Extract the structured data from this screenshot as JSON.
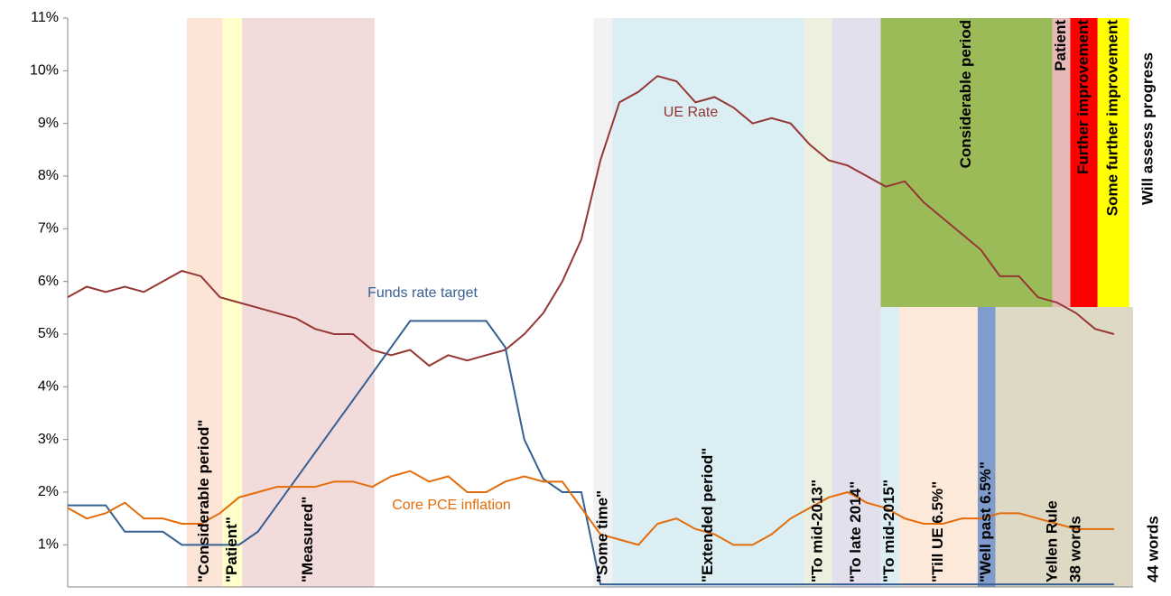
{
  "chart_data": {
    "type": "line",
    "x": [
      0,
      3,
      6,
      9,
      12,
      15,
      18,
      21,
      24,
      27,
      30,
      33,
      36,
      39,
      42,
      45,
      48,
      51,
      54,
      57,
      60,
      63,
      66,
      69,
      72,
      75,
      78,
      81,
      84,
      87,
      90,
      93,
      96,
      99,
      102,
      105,
      108,
      111,
      114,
      117,
      120,
      123,
      126,
      129,
      132,
      135,
      138,
      141,
      144,
      147,
      150,
      153,
      156,
      159,
      162,
      165
    ],
    "xlim": [
      0,
      168
    ],
    "ylim": [
      0.2,
      11
    ],
    "yticks": [
      {
        "value": 1,
        "label": "1%"
      },
      {
        "value": 2,
        "label": "2%"
      },
      {
        "value": 3,
        "label": "3%"
      },
      {
        "value": 4,
        "label": "4%"
      },
      {
        "value": 5,
        "label": "5%"
      },
      {
        "value": 6,
        "label": "6%"
      },
      {
        "value": 7,
        "label": "7%"
      },
      {
        "value": 8,
        "label": "8%"
      },
      {
        "value": 9,
        "label": "9%"
      },
      {
        "value": 10,
        "label": "10%"
      },
      {
        "value": 11,
        "label": "11%"
      }
    ],
    "series": [
      {
        "name": "UE Rate",
        "color": "#953735",
        "values": [
          5.7,
          5.9,
          5.8,
          5.9,
          5.8,
          6.0,
          6.2,
          6.1,
          5.7,
          5.6,
          5.5,
          5.4,
          5.3,
          5.1,
          5.0,
          5.0,
          4.7,
          4.6,
          4.7,
          4.4,
          4.6,
          4.5,
          4.6,
          4.7,
          5.0,
          5.4,
          6.0,
          6.8,
          8.3,
          9.4,
          9.6,
          9.9,
          9.8,
          9.4,
          9.5,
          9.3,
          9.0,
          9.1,
          9.0,
          8.6,
          8.3,
          8.2,
          8.0,
          7.8,
          7.9,
          7.5,
          7.2,
          6.9,
          6.6,
          6.1,
          6.1,
          5.7,
          5.6,
          5.4,
          5.1,
          5.0
        ]
      },
      {
        "name": "Funds rate target",
        "color": "#376092",
        "values": [
          1.75,
          1.75,
          1.75,
          1.25,
          1.25,
          1.25,
          1.0,
          1.0,
          1.0,
          1.0,
          1.25,
          1.75,
          2.25,
          2.75,
          3.25,
          3.75,
          4.25,
          4.75,
          5.25,
          5.25,
          5.25,
          5.25,
          5.25,
          4.75,
          3.0,
          2.25,
          2.0,
          2.0,
          0.25,
          0.25,
          0.25,
          0.25,
          0.25,
          0.25,
          0.25,
          0.25,
          0.25,
          0.25,
          0.25,
          0.25,
          0.25,
          0.25,
          0.25,
          0.25,
          0.25,
          0.25,
          0.25,
          0.25,
          0.25,
          0.25,
          0.25,
          0.25,
          0.25,
          0.25,
          0.25,
          0.25
        ]
      },
      {
        "name": "Core PCE inflation",
        "color": "#e46c0a",
        "values": [
          1.7,
          1.5,
          1.6,
          1.8,
          1.5,
          1.5,
          1.4,
          1.4,
          1.6,
          1.9,
          2.0,
          2.1,
          2.1,
          2.1,
          2.2,
          2.2,
          2.1,
          2.3,
          2.4,
          2.2,
          2.3,
          2.0,
          2.0,
          2.2,
          2.3,
          2.2,
          2.2,
          1.7,
          1.2,
          1.1,
          1.0,
          1.4,
          1.5,
          1.3,
          1.2,
          1.0,
          1.0,
          1.2,
          1.5,
          1.7,
          1.9,
          2.0,
          1.8,
          1.7,
          1.5,
          1.4,
          1.4,
          1.5,
          1.5,
          1.6,
          1.6,
          1.5,
          1.4,
          1.3,
          1.3,
          1.3
        ]
      }
    ],
    "regions": [
      {
        "labels": [
          "\"Considerable  period\""
        ],
        "start": 18.8,
        "end": 24.4,
        "band": "full",
        "color": "#fce4d6"
      },
      {
        "labels": [
          "\"Patient\""
        ],
        "start": 24.4,
        "end": 27.5,
        "band": "full",
        "color": "#ffffcc"
      },
      {
        "labels": [
          "\"Measured\""
        ],
        "start": 27.5,
        "end": 48.4,
        "band": "full",
        "color": "#f2dcdb"
      },
      {
        "labels": [
          "\"Some time\""
        ],
        "start": 82.9,
        "end": 85.9,
        "band": "full",
        "color": "#f2f2f2"
      },
      {
        "labels": [
          "\"Extended period\""
        ],
        "start": 85.9,
        "end": 116.1,
        "band": "full",
        "color": "#daeef3"
      },
      {
        "labels": [
          "\"To mid-2013\""
        ],
        "start": 116.1,
        "end": 120.5,
        "band": "full",
        "color": "#ebf1de"
      },
      {
        "labels": [
          "\"To late 2014\""
        ],
        "start": 120.5,
        "end": 128.2,
        "band": "full",
        "color": "#e4dfec"
      },
      {
        "labels": [
          "\"To mid-2015\""
        ],
        "start": 128.2,
        "end": 131.1,
        "band": "lower",
        "color": "#daeef3"
      },
      {
        "labels": [
          "\"Till UE 6.5%\""
        ],
        "start": 131.1,
        "end": 143.5,
        "band": "lower",
        "color": "#fde9d9"
      },
      {
        "labels": [
          "\"Well past 6.5%\""
        ],
        "start": 143.5,
        "end": 146.3,
        "band": "lower",
        "color": "#7f9ccc"
      },
      {
        "labels": [
          "Yellen Rule",
          "38 words"
        ],
        "start": 146.3,
        "end": 168,
        "band": "lower",
        "color": "#ddd9c4"
      },
      {
        "labels": [
          "Considerable  period"
        ],
        "start": 128.2,
        "end": 155.3,
        "band": "upper",
        "color": "#9bbb59"
      },
      {
        "labels": [
          "Patient"
        ],
        "start": 155.3,
        "end": 158.1,
        "band": "upper",
        "color": "#e6b9b8"
      },
      {
        "labels": [
          "Further improvement"
        ],
        "start": 158.1,
        "end": 162.4,
        "band": "upper",
        "color": "#ff0000"
      },
      {
        "labels": [
          "Some further improvement"
        ],
        "start": 162.4,
        "end": 167.4,
        "band": "upper",
        "color": "#ffff00"
      }
    ],
    "annotations": [
      "Will assess progress",
      "44 words"
    ]
  }
}
